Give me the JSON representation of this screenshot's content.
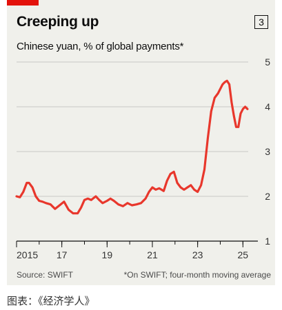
{
  "header": {
    "title": "Creeping up",
    "chart_number": "3"
  },
  "footer": {
    "source": "Source: SWIFT",
    "footnote": "*On SWIFT; four-month moving average"
  },
  "caption": "图表：《经济学人》",
  "colors": {
    "accent": "#e3120b",
    "line": "#e8372c",
    "background": "#f0f0eb"
  },
  "chart_data": {
    "type": "line",
    "title": "Chinese yuan, % of global payments*",
    "xlabel": "",
    "ylabel": "",
    "xlim": [
      2015,
      2025.6
    ],
    "ylim": [
      1,
      5
    ],
    "y_ticks": [
      1,
      2,
      3,
      4,
      5
    ],
    "x_ticks": [
      {
        "value": 2015,
        "label": "2015"
      },
      {
        "value": 2017,
        "label": "17"
      },
      {
        "value": 2019,
        "label": "19"
      },
      {
        "value": 2021,
        "label": "21"
      },
      {
        "value": 2023,
        "label": "23"
      },
      {
        "value": 2025,
        "label": "25"
      }
    ],
    "grid": true,
    "series": [
      {
        "x": [
          2015.0,
          2015.15,
          2015.3,
          2015.45,
          2015.55,
          2015.7,
          2015.85,
          2016.0,
          2016.15,
          2016.3,
          2016.5,
          2016.7,
          2016.9,
          2017.1,
          2017.3,
          2017.5,
          2017.7,
          2017.85,
          2018.0,
          2018.15,
          2018.3,
          2018.5,
          2018.65,
          2018.8,
          2019.0,
          2019.15,
          2019.3,
          2019.5,
          2019.7,
          2019.9,
          2020.1,
          2020.3,
          2020.5,
          2020.7,
          2020.85,
          2021.0,
          2021.15,
          2021.3,
          2021.5,
          2021.65,
          2021.8,
          2021.95,
          2022.1,
          2022.25,
          2022.4,
          2022.55,
          2022.7,
          2022.85,
          2023.0,
          2023.15,
          2023.3,
          2023.45,
          2023.6,
          2023.75,
          2023.9,
          2024.0,
          2024.1,
          2024.2,
          2024.3,
          2024.4,
          2024.5,
          2024.6,
          2024.7,
          2024.8,
          2024.9,
          2025.0,
          2025.1,
          2025.2
        ],
        "y": [
          2.0,
          1.98,
          2.1,
          2.3,
          2.3,
          2.2,
          2.0,
          1.9,
          1.88,
          1.85,
          1.82,
          1.72,
          1.8,
          1.88,
          1.7,
          1.62,
          1.62,
          1.75,
          1.92,
          1.95,
          1.92,
          2.0,
          1.92,
          1.85,
          1.9,
          1.95,
          1.9,
          1.82,
          1.78,
          1.85,
          1.8,
          1.82,
          1.85,
          1.95,
          2.1,
          2.2,
          2.15,
          2.18,
          2.12,
          2.35,
          2.5,
          2.55,
          2.3,
          2.2,
          2.15,
          2.2,
          2.25,
          2.15,
          2.1,
          2.25,
          2.6,
          3.3,
          3.9,
          4.2,
          4.3,
          4.4,
          4.5,
          4.55,
          4.58,
          4.5,
          4.1,
          3.8,
          3.55,
          3.55,
          3.85,
          3.95,
          4.0,
          3.95
        ]
      }
    ]
  }
}
